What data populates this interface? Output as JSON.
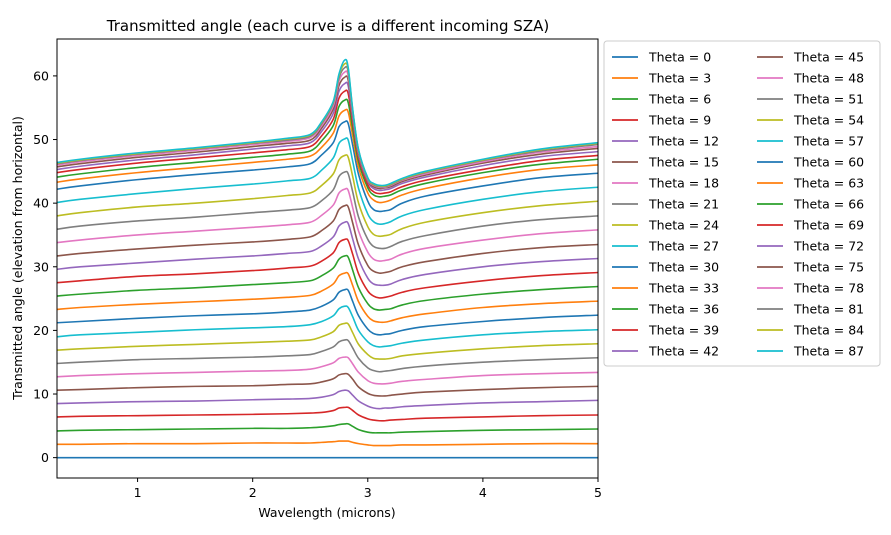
{
  "chart_data": {
    "type": "line",
    "title": "Transmitted angle (each curve is a different incoming SZA)",
    "xlabel": "Wavelength (microns)",
    "ylabel": "Transmitted angle (elevation from horizontal)",
    "xlim": [
      0.3,
      5.0
    ],
    "ylim": [
      -3.2,
      65.8
    ],
    "xticks": [
      1,
      2,
      3,
      4,
      5
    ],
    "yticks": [
      0,
      10,
      20,
      30,
      40,
      50,
      60
    ],
    "grid": false,
    "legend_position": "outside-right",
    "legend_columns": 2,
    "x": [
      0.3,
      0.5,
      1.0,
      1.5,
      2.0,
      2.3,
      2.5,
      2.6,
      2.7,
      2.75,
      2.8,
      2.83,
      2.87,
      2.92,
      3.0,
      3.05,
      3.1,
      3.15,
      3.2,
      3.3,
      3.5,
      4.0,
      4.5,
      5.0
    ],
    "series": [
      {
        "name": "Theta = 0",
        "color": "#1f77b4",
        "values": [
          0.0,
          0.0,
          0.0,
          0.0,
          0.0,
          0.0,
          0.0,
          0.0,
          0.0,
          0.0,
          0.0,
          0.0,
          0.0,
          0.0,
          0.0,
          0.0,
          0.0,
          0.0,
          0.0,
          0.0,
          0.0,
          0.0,
          0.0,
          0.0
        ]
      },
      {
        "name": "Theta = 3",
        "color": "#ff7f0e",
        "values": [
          2.1,
          2.1,
          2.2,
          2.2,
          2.3,
          2.3,
          2.3,
          2.4,
          2.5,
          2.6,
          2.6,
          2.6,
          2.4,
          2.2,
          2.0,
          1.9,
          1.9,
          1.9,
          1.9,
          2.0,
          2.0,
          2.1,
          2.2,
          2.2
        ]
      },
      {
        "name": "Theta = 6",
        "color": "#2ca02c",
        "values": [
          4.2,
          4.3,
          4.4,
          4.5,
          4.6,
          4.6,
          4.7,
          4.8,
          5.0,
          5.2,
          5.3,
          5.3,
          4.9,
          4.4,
          4.0,
          3.9,
          3.9,
          3.9,
          3.9,
          4.0,
          4.1,
          4.3,
          4.4,
          4.5
        ]
      },
      {
        "name": "Theta = 9",
        "color": "#d62728",
        "values": [
          6.4,
          6.5,
          6.6,
          6.7,
          6.8,
          6.9,
          7.0,
          7.1,
          7.4,
          7.8,
          7.9,
          7.9,
          7.4,
          6.7,
          6.1,
          5.9,
          5.8,
          5.8,
          5.9,
          6.0,
          6.2,
          6.4,
          6.6,
          6.7
        ]
      },
      {
        "name": "Theta = 12",
        "color": "#9467bd",
        "values": [
          8.5,
          8.6,
          8.8,
          8.9,
          9.1,
          9.2,
          9.3,
          9.5,
          9.9,
          10.4,
          10.6,
          10.5,
          9.8,
          8.9,
          8.1,
          7.8,
          7.7,
          7.8,
          7.8,
          8.0,
          8.2,
          8.6,
          8.8,
          9.0
        ]
      },
      {
        "name": "Theta = 15",
        "color": "#8c564b",
        "values": [
          10.6,
          10.7,
          11.0,
          11.2,
          11.3,
          11.5,
          11.6,
          11.9,
          12.4,
          13.0,
          13.2,
          13.1,
          12.3,
          11.1,
          10.1,
          9.8,
          9.7,
          9.7,
          9.8,
          10.0,
          10.3,
          10.7,
          11.0,
          11.2
        ]
      },
      {
        "name": "Theta = 18",
        "color": "#e377c2",
        "values": [
          12.7,
          12.9,
          13.2,
          13.4,
          13.6,
          13.7,
          13.9,
          14.3,
          14.9,
          15.6,
          15.8,
          15.7,
          14.7,
          13.4,
          12.1,
          11.7,
          11.6,
          11.6,
          11.7,
          12.0,
          12.3,
          12.9,
          13.2,
          13.4
        ]
      },
      {
        "name": "Theta = 21",
        "color": "#7f7f7f",
        "values": [
          14.8,
          15.0,
          15.4,
          15.6,
          15.8,
          16.0,
          16.2,
          16.7,
          17.4,
          18.2,
          18.5,
          18.4,
          17.2,
          15.6,
          14.1,
          13.7,
          13.5,
          13.6,
          13.7,
          14.0,
          14.4,
          15.0,
          15.4,
          15.7
        ]
      },
      {
        "name": "Theta = 24",
        "color": "#bcbd22",
        "values": [
          16.9,
          17.1,
          17.5,
          17.8,
          18.1,
          18.3,
          18.5,
          19.0,
          19.8,
          20.8,
          21.1,
          21.0,
          19.6,
          17.8,
          16.2,
          15.6,
          15.5,
          15.5,
          15.6,
          16.0,
          16.4,
          17.1,
          17.6,
          17.9
        ]
      },
      {
        "name": "Theta = 27",
        "color": "#17becf",
        "values": [
          19.0,
          19.3,
          19.7,
          20.1,
          20.4,
          20.6,
          20.9,
          21.4,
          22.3,
          23.4,
          23.8,
          23.6,
          22.1,
          20.0,
          18.2,
          17.6,
          17.4,
          17.5,
          17.6,
          18.0,
          18.5,
          19.3,
          19.8,
          20.1
        ]
      },
      {
        "name": "Theta = 30",
        "color": "#1f77b4",
        "values": [
          21.2,
          21.4,
          21.9,
          22.3,
          22.6,
          22.9,
          23.2,
          23.8,
          24.8,
          26.0,
          26.4,
          26.3,
          24.5,
          22.3,
          20.2,
          19.5,
          19.3,
          19.4,
          19.5,
          20.0,
          20.6,
          21.4,
          22.0,
          22.4
        ]
      },
      {
        "name": "Theta = 33",
        "color": "#ff7f0e",
        "values": [
          23.3,
          23.6,
          24.1,
          24.5,
          24.9,
          25.2,
          25.5,
          26.2,
          27.3,
          28.6,
          29.0,
          28.9,
          27.0,
          24.5,
          22.2,
          21.5,
          21.3,
          21.3,
          21.5,
          22.0,
          22.6,
          23.6,
          24.2,
          24.6
        ]
      },
      {
        "name": "Theta = 36",
        "color": "#2ca02c",
        "values": [
          25.4,
          25.7,
          26.3,
          26.7,
          27.2,
          27.5,
          27.8,
          28.6,
          29.8,
          31.2,
          31.7,
          31.5,
          29.4,
          26.7,
          24.2,
          23.4,
          23.2,
          23.3,
          23.4,
          24.0,
          24.7,
          25.7,
          26.4,
          26.9
        ]
      },
      {
        "name": "Theta = 39",
        "color": "#d62728",
        "values": [
          27.5,
          27.8,
          28.5,
          28.9,
          29.4,
          29.8,
          30.1,
          30.9,
          32.2,
          33.8,
          34.3,
          34.1,
          31.9,
          28.9,
          26.2,
          25.4,
          25.1,
          25.2,
          25.4,
          26.0,
          26.7,
          27.8,
          28.6,
          29.1
        ]
      },
      {
        "name": "Theta = 42",
        "color": "#9467bd",
        "values": [
          29.6,
          30.0,
          30.6,
          31.2,
          31.7,
          32.1,
          32.4,
          33.3,
          34.7,
          36.4,
          37.0,
          36.8,
          34.3,
          31.2,
          28.2,
          27.3,
          27.1,
          27.1,
          27.3,
          28.0,
          28.8,
          30.0,
          30.8,
          31.3
        ]
      },
      {
        "name": "Theta = 45",
        "color": "#8c564b",
        "values": [
          31.7,
          32.1,
          32.8,
          33.4,
          33.9,
          34.3,
          34.7,
          35.7,
          37.2,
          39.0,
          39.6,
          39.4,
          36.8,
          33.4,
          30.2,
          29.3,
          29.0,
          29.1,
          29.3,
          30.0,
          30.8,
          32.1,
          33.0,
          33.5
        ]
      },
      {
        "name": "Theta = 48",
        "color": "#e377c2",
        "values": [
          33.8,
          34.2,
          35.0,
          35.6,
          36.2,
          36.6,
          37.0,
          38.1,
          39.7,
          41.6,
          42.2,
          42.0,
          39.2,
          35.6,
          32.3,
          31.2,
          30.9,
          31.0,
          31.2,
          32.0,
          32.9,
          34.2,
          35.2,
          35.8
        ]
      },
      {
        "name": "Theta = 51",
        "color": "#7f7f7f",
        "values": [
          35.9,
          36.4,
          37.2,
          37.8,
          38.5,
          38.9,
          39.3,
          40.4,
          42.1,
          44.2,
          44.9,
          44.6,
          41.7,
          37.8,
          34.3,
          33.2,
          32.9,
          32.9,
          33.2,
          34.0,
          34.9,
          36.4,
          37.4,
          38.0
        ]
      },
      {
        "name": "Theta = 54",
        "color": "#bcbd22",
        "values": [
          38.0,
          38.5,
          39.4,
          40.0,
          40.7,
          41.2,
          41.6,
          42.8,
          44.6,
          46.8,
          47.5,
          47.2,
          44.1,
          40.0,
          36.3,
          35.1,
          34.8,
          34.9,
          35.1,
          36.0,
          37.0,
          38.5,
          39.6,
          40.3
        ]
      },
      {
        "name": "Theta = 57",
        "color": "#17becf",
        "values": [
          40.1,
          40.6,
          41.5,
          42.3,
          43.0,
          43.5,
          43.9,
          45.2,
          47.1,
          49.4,
          50.1,
          49.9,
          46.5,
          42.3,
          38.3,
          37.1,
          36.7,
          36.8,
          37.1,
          38.0,
          39.0,
          40.6,
          41.8,
          42.5
        ]
      },
      {
        "name": "Theta = 60",
        "color": "#1f77b4",
        "values": [
          42.2,
          42.7,
          43.7,
          44.5,
          45.2,
          45.7,
          46.2,
          47.6,
          49.5,
          52.0,
          52.8,
          52.5,
          49.0,
          44.5,
          40.3,
          39.0,
          38.7,
          38.8,
          39.0,
          40.0,
          41.1,
          42.7,
          44.0,
          44.7
        ]
      },
      {
        "name": "Theta = 63",
        "color": "#ff7f0e",
        "values": [
          43.3,
          43.8,
          44.8,
          45.6,
          46.4,
          46.9,
          47.4,
          48.8,
          51.0,
          53.7,
          54.6,
          54.3,
          50.5,
          45.6,
          41.6,
          40.5,
          40.1,
          40.2,
          40.5,
          41.3,
          42.3,
          44.0,
          45.3,
          46.0
        ]
      },
      {
        "name": "Theta = 66",
        "color": "#2ca02c",
        "values": [
          44.1,
          44.6,
          45.6,
          46.4,
          47.2,
          47.7,
          48.2,
          49.8,
          52.2,
          55.2,
          56.2,
          55.8,
          51.6,
          46.5,
          42.4,
          41.3,
          41.0,
          41.1,
          41.3,
          42.1,
          43.1,
          44.8,
          46.1,
          46.9
        ]
      },
      {
        "name": "Theta = 69",
        "color": "#d62728",
        "values": [
          44.8,
          45.3,
          46.3,
          47.1,
          47.9,
          48.4,
          48.9,
          50.6,
          53.2,
          56.5,
          57.6,
          57.2,
          52.6,
          47.1,
          42.9,
          41.8,
          41.5,
          41.6,
          41.8,
          42.6,
          43.6,
          45.3,
          46.7,
          47.5
        ]
      },
      {
        "name": "Theta = 72",
        "color": "#9467bd",
        "values": [
          45.3,
          45.8,
          46.8,
          47.6,
          48.5,
          49.0,
          49.5,
          51.3,
          54.1,
          57.6,
          58.8,
          58.4,
          53.3,
          47.5,
          43.4,
          42.3,
          42.0,
          42.1,
          42.3,
          43.1,
          44.1,
          45.9,
          47.3,
          48.1
        ]
      },
      {
        "name": "Theta = 75",
        "color": "#8c564b",
        "values": [
          45.7,
          46.2,
          47.2,
          48.0,
          48.9,
          49.4,
          49.9,
          51.8,
          54.8,
          58.5,
          59.8,
          59.3,
          53.8,
          47.8,
          43.6,
          42.6,
          42.3,
          42.4,
          42.6,
          43.4,
          44.4,
          46.3,
          47.7,
          48.6
        ]
      },
      {
        "name": "Theta = 78",
        "color": "#e377c2",
        "values": [
          46.0,
          46.5,
          47.5,
          48.3,
          49.2,
          49.7,
          50.3,
          52.2,
          55.3,
          59.2,
          60.6,
          60.0,
          54.1,
          48.0,
          43.7,
          42.8,
          42.5,
          42.5,
          42.8,
          43.6,
          44.6,
          46.5,
          48.0,
          48.9
        ]
      },
      {
        "name": "Theta = 81",
        "color": "#7f7f7f",
        "values": [
          46.2,
          46.7,
          47.7,
          48.5,
          49.4,
          49.9,
          50.5,
          52.5,
          55.7,
          59.7,
          61.3,
          60.6,
          54.3,
          48.2,
          43.8,
          42.9,
          42.6,
          42.6,
          42.9,
          43.7,
          44.8,
          46.7,
          48.2,
          49.2
        ]
      },
      {
        "name": "Theta = 84",
        "color": "#bcbd22",
        "values": [
          46.3,
          46.8,
          47.8,
          48.6,
          49.5,
          50.1,
          50.7,
          52.7,
          55.9,
          60.1,
          61.9,
          61.0,
          54.5,
          48.3,
          43.9,
          43.0,
          42.7,
          42.7,
          43.0,
          43.8,
          44.9,
          46.8,
          48.4,
          49.4
        ]
      },
      {
        "name": "Theta = 87",
        "color": "#17becf",
        "values": [
          46.4,
          46.9,
          47.9,
          48.7,
          49.6,
          50.2,
          50.8,
          52.8,
          56.0,
          60.3,
          62.5,
          61.3,
          54.6,
          48.4,
          44.0,
          43.1,
          42.8,
          42.8,
          43.1,
          43.9,
          45.0,
          46.9,
          48.5,
          49.5
        ]
      }
    ]
  }
}
